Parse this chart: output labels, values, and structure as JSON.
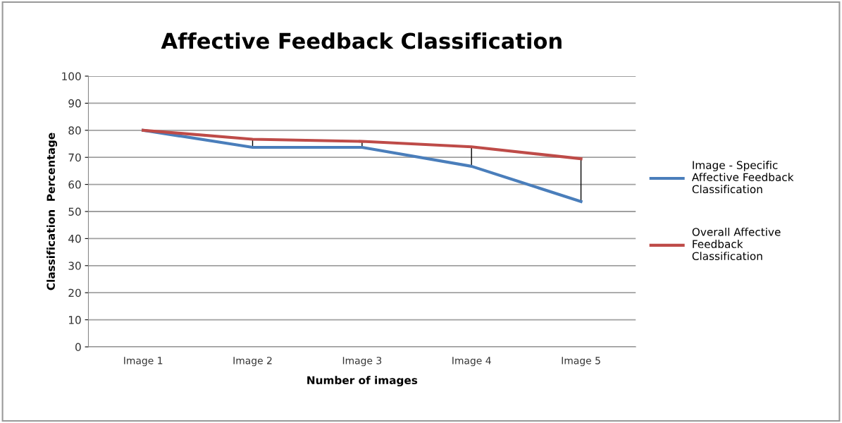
{
  "chart_data": {
    "type": "line",
    "title": "Affective Feedback Classification",
    "xlabel": "Number of images",
    "ylabel": "Classification  Percentage",
    "categories": [
      "Image 1",
      "Image 2",
      "Image 3",
      "Image 4",
      "Image 5"
    ],
    "series": [
      {
        "name": "Image - Specific Affective Feedback Classification",
        "color": "#4a7ebb",
        "values": [
          80,
          73.7,
          73.7,
          66.7,
          53.7
        ]
      },
      {
        "name": "Overall Affective Feedback Classification",
        "color": "#be4b48",
        "values": [
          80,
          76.7,
          75.9,
          73.9,
          69.5
        ],
        "errors": [
          null,
          [
            73.7,
            76.7
          ],
          [
            73.7,
            75.9
          ],
          [
            66.7,
            73.9
          ],
          [
            53.7,
            69.5
          ]
        ]
      }
    ],
    "ylim": [
      0,
      100
    ],
    "yticks": [
      0,
      10,
      20,
      30,
      40,
      50,
      60,
      70,
      80,
      90,
      100
    ],
    "grid": "y",
    "legend": "right",
    "marker": "none"
  }
}
